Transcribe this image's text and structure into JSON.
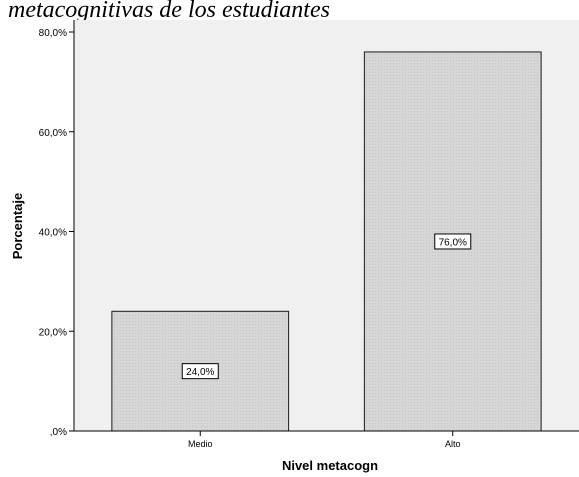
{
  "page_title_fragment": "metacognitivas de los estudiantes",
  "chart_data": {
    "type": "bar",
    "categories": [
      "Medio",
      "Alto"
    ],
    "values": [
      24.0,
      76.0
    ],
    "value_labels": [
      "24,0%",
      "76,0%"
    ],
    "xlabel": "Nivel metacogn",
    "ylabel": "Porcentaje",
    "ylim": [
      0,
      80
    ],
    "yticks": [
      0,
      20,
      40,
      60,
      80
    ],
    "ytick_labels": [
      ",0%",
      "20,0%",
      "40,0%",
      "60,0%",
      "80,0%"
    ],
    "grid": false,
    "legend": "none"
  },
  "colors": {
    "plot_background": "#f0f0f0",
    "bar_fill": "#d3d3d3",
    "bar_stroke": "#1a1a1a",
    "axis": "#000000",
    "label_box_fill": "#ffffff"
  }
}
